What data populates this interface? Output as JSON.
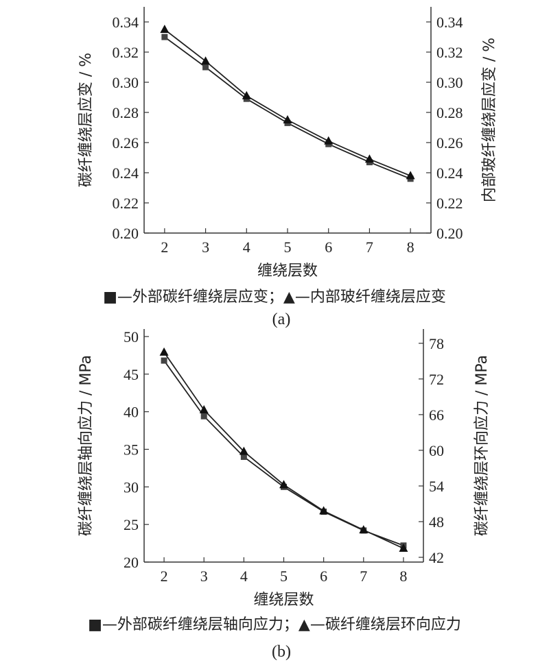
{
  "chart_data": [
    {
      "panel": "a",
      "type": "line",
      "caption": "(a)",
      "xlabel": "缠绕层数",
      "ylabel_left": "碳纤缠绕层应变 / %",
      "ylabel_right": "内部玻纤缠绕层应变 / %",
      "x": [
        2,
        3,
        4,
        5,
        6,
        7,
        8
      ],
      "xlim": [
        1.5,
        8.5
      ],
      "ylim_left": [
        0.2,
        0.35
      ],
      "ylim_right": [
        0.2,
        0.35
      ],
      "yticks_left": [
        0.2,
        0.22,
        0.24,
        0.26,
        0.28,
        0.3,
        0.32,
        0.34
      ],
      "yticks_right": [
        0.2,
        0.22,
        0.24,
        0.26,
        0.28,
        0.3,
        0.32,
        0.34
      ],
      "series": [
        {
          "name": "外部碳纤缠绕层应变",
          "marker": "square",
          "axis": "left",
          "values": [
            0.33,
            0.31,
            0.289,
            0.273,
            0.259,
            0.247,
            0.236
          ]
        },
        {
          "name": "内部玻纤缠绕层应变",
          "marker": "triangle",
          "axis": "right",
          "values": [
            0.335,
            0.314,
            0.291,
            0.275,
            0.261,
            0.249,
            0.238
          ]
        }
      ],
      "legend_text": "■—外部碳纤缠绕层应变；▲—内部玻纤缠绕层应变"
    },
    {
      "panel": "b",
      "type": "line",
      "caption": "(b)",
      "xlabel": "缠绕层数",
      "ylabel_left": "碳纤缠绕层轴向应力 / MPa",
      "ylabel_right": "碳纤缠绕层环向应力 / MPa",
      "x": [
        2,
        3,
        4,
        5,
        6,
        7,
        8
      ],
      "xlim": [
        1.5,
        8.5
      ],
      "ylim_left": [
        20,
        51
      ],
      "ylim_right": [
        41.2,
        80.4
      ],
      "yticks_left": [
        20,
        25,
        30,
        35,
        40,
        45,
        50
      ],
      "yticks_right": [
        42,
        48,
        54,
        60,
        66,
        72,
        78
      ],
      "series": [
        {
          "name": "外部碳纤缠绕层轴向应力",
          "marker": "square",
          "axis": "left",
          "values": [
            46.8,
            39.4,
            34.0,
            30.0,
            26.7,
            24.2,
            22.2
          ]
        },
        {
          "name": "碳纤缠绕层环向应力",
          "marker": "triangle",
          "axis": "right",
          "values": [
            76.5,
            66.8,
            59.8,
            54.2,
            49.8,
            46.6,
            43.5
          ]
        }
      ],
      "legend_text": "■—外部碳纤缠绕层轴向应力；▲—碳纤缠绕层环向应力"
    }
  ]
}
